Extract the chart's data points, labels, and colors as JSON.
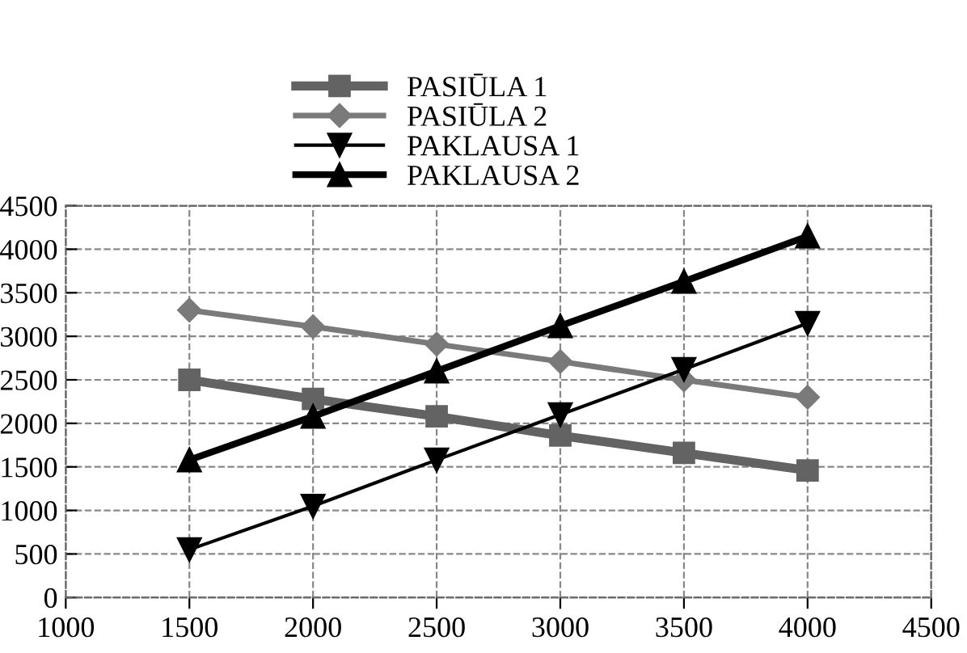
{
  "chart_data": {
    "type": "line",
    "x": [
      1500,
      2000,
      2500,
      3000,
      3500,
      4000
    ],
    "series": [
      {
        "name": "PASIŪLA 1",
        "color": "#636363",
        "marker": "square",
        "values": [
          2500,
          2280,
          2080,
          1860,
          1660,
          1460
        ]
      },
      {
        "name": "PASIŪLA 2",
        "color": "#7a7a7a",
        "marker": "diamond",
        "values": [
          3300,
          3110,
          2910,
          2710,
          2500,
          2300
        ]
      },
      {
        "name": "PAKLAUSA 1",
        "color": "#000000",
        "marker": "triangle_down",
        "values": [
          550,
          1050,
          1580,
          2100,
          2620,
          3150
        ]
      },
      {
        "name": "PAKLAUSA 2",
        "color": "#000000",
        "marker": "triangle",
        "values": [
          1580,
          2080,
          2600,
          3120,
          3630,
          4150
        ]
      }
    ],
    "xlim": [
      1000,
      4500
    ],
    "xticks": [
      1000,
      1500,
      2000,
      2500,
      3000,
      3500,
      4000,
      4500
    ],
    "ylim": [
      0,
      4500
    ],
    "yticks": [
      0,
      500,
      1000,
      1500,
      2000,
      2500,
      3000,
      3500,
      4000,
      4500
    ],
    "grid": true,
    "legend": "top",
    "line_style": "solid"
  }
}
